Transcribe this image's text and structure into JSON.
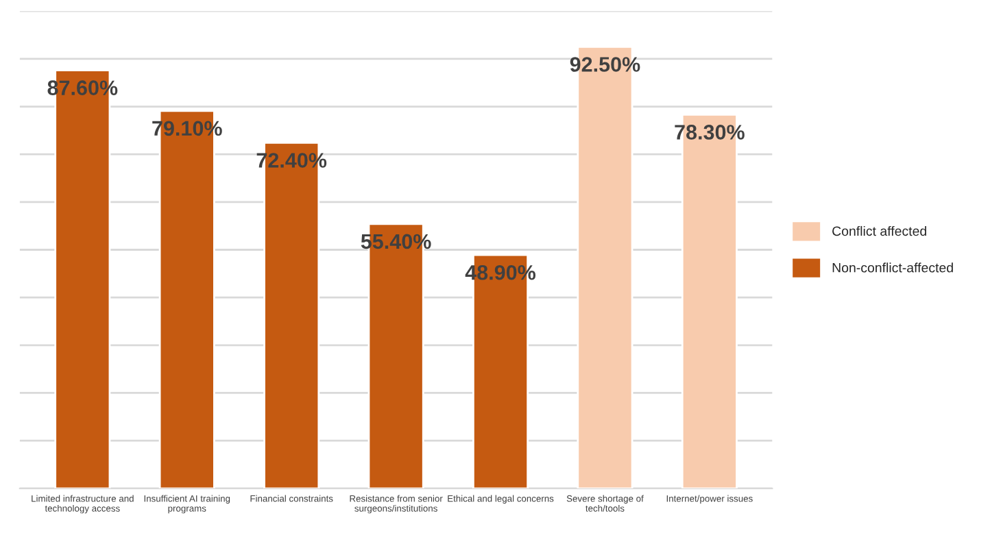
{
  "chart_data": {
    "type": "bar",
    "categories": [
      "Limited infrastructure and\ntechnology access",
      "Insufficient AI training\nprograms",
      "Financial constraints",
      "Resistance from senior\nsurgeons/institutions",
      "Ethical and legal concerns",
      "Severe shortage of\ntech/tools",
      "Internet/power issues"
    ],
    "series": [
      {
        "name": "Conflict affected",
        "color": "#f8cbad",
        "values": [
          null,
          null,
          null,
          null,
          null,
          92.5,
          78.3
        ],
        "value_labels": [
          null,
          null,
          null,
          null,
          null,
          "92.50%",
          "78.30%"
        ]
      },
      {
        "name": "Non-conflict-affected",
        "color": "#c55a11",
        "values": [
          87.6,
          79.1,
          72.4,
          55.4,
          48.9,
          null,
          null
        ],
        "value_labels": [
          "87.60%",
          "79.10%",
          "72.40%",
          "55.40%",
          "48.90%",
          null,
          null
        ]
      }
    ],
    "ylim": [
      0,
      100
    ],
    "yticks": [
      {
        "value": 0,
        "label": null
      },
      {
        "value": 10,
        "label": null
      },
      {
        "value": 20,
        "label": null
      },
      {
        "value": 30,
        "label": null
      },
      {
        "value": 40,
        "label": null
      },
      {
        "value": 50,
        "label": null
      },
      {
        "value": 60,
        "label": null
      },
      {
        "value": 70,
        "label": null
      },
      {
        "value": 80,
        "label": null
      },
      {
        "value": 90,
        "label": null
      },
      {
        "value": 100,
        "label": null
      }
    ],
    "tick_labels": "x",
    "grid": "y",
    "legend": "right"
  }
}
